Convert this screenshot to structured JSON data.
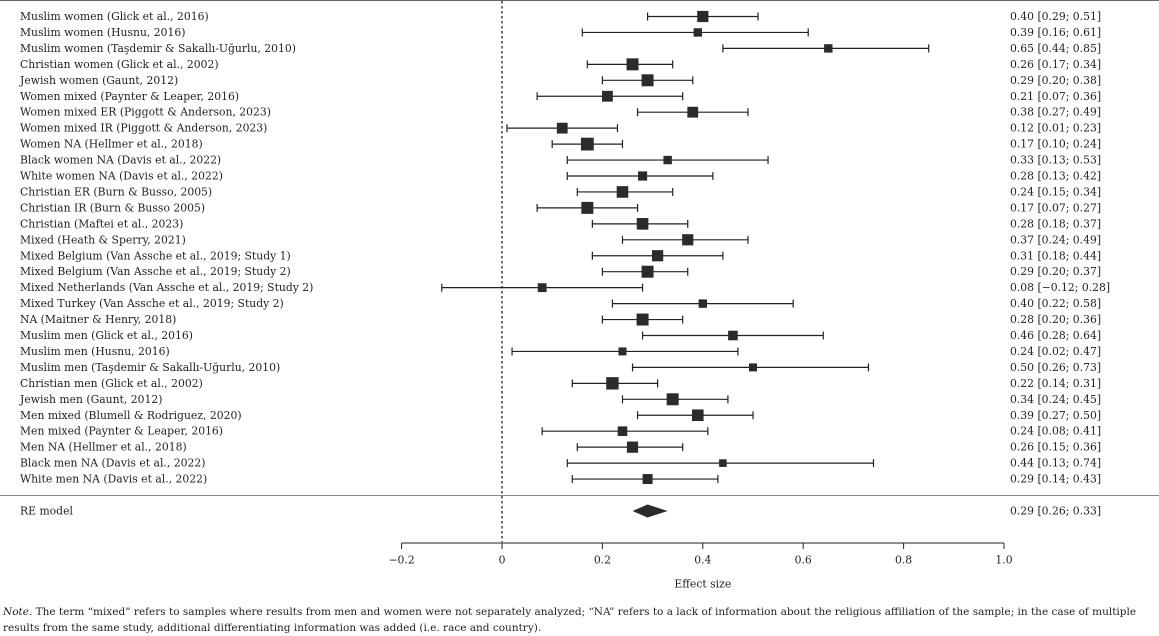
{
  "chart_data": {
    "type": "forest",
    "xlabel": "Effect size",
    "xlim": [
      -0.2,
      1.0
    ],
    "x_ticks": [
      -0.2,
      0,
      0.2,
      0.4,
      0.6,
      0.8,
      1.0
    ],
    "x_tick_labels": [
      "−0.2",
      "0",
      "0.2",
      "0.4",
      "0.6",
      "0.8",
      "1.0"
    ],
    "reference_line": 0,
    "studies": [
      {
        "label": "Muslim women (Glick et al., 2016)",
        "est": 0.4,
        "lo": 0.29,
        "hi": 0.51,
        "ci_text": "0.40 [0.29; 0.51]",
        "weight": 0.9
      },
      {
        "label": "Muslim women (Husnu, 2016)",
        "est": 0.39,
        "lo": 0.16,
        "hi": 0.61,
        "ci_text": "0.39 [0.16; 0.61]",
        "weight": 0.55
      },
      {
        "label": "Muslim women (Taşdemir & Sakallı-Uğurlu, 2010)",
        "est": 0.65,
        "lo": 0.44,
        "hi": 0.85,
        "ci_text": "0.65 [0.44; 0.85]",
        "weight": 0.55
      },
      {
        "label": "Christian women (Glick et al., 2002)",
        "est": 0.26,
        "lo": 0.17,
        "hi": 0.34,
        "ci_text": "0.26 [0.17; 0.34]",
        "weight": 1.0
      },
      {
        "label": "Jewish women (Gaunt, 2012)",
        "est": 0.29,
        "lo": 0.2,
        "hi": 0.38,
        "ci_text": "0.29 [0.20; 0.38]",
        "weight": 1.0
      },
      {
        "label": "Women mixed (Paynter & Leaper, 2016)",
        "est": 0.21,
        "lo": 0.07,
        "hi": 0.36,
        "ci_text": "0.21 [0.07; 0.36]",
        "weight": 0.85
      },
      {
        "label": "Women mixed ER (Piggott & Anderson, 2023)",
        "est": 0.38,
        "lo": 0.27,
        "hi": 0.49,
        "ci_text": "0.38 [0.27; 0.49]",
        "weight": 0.85
      },
      {
        "label": "Women mixed IR (Piggott & Anderson, 2023)",
        "est": 0.12,
        "lo": 0.01,
        "hi": 0.23,
        "ci_text": "0.12 [0.01; 0.23]",
        "weight": 0.85
      },
      {
        "label": "Women NA (Hellmer et al., 2018)",
        "est": 0.17,
        "lo": 0.1,
        "hi": 0.24,
        "ci_text": "0.17 [0.10; 0.24]",
        "weight": 1.1
      },
      {
        "label": "Black women NA (Davis et al., 2022)",
        "est": 0.33,
        "lo": 0.13,
        "hi": 0.53,
        "ci_text": "0.33 [0.13; 0.53]",
        "weight": 0.55
      },
      {
        "label": "White women NA (Davis et al., 2022)",
        "est": 0.28,
        "lo": 0.13,
        "hi": 0.42,
        "ci_text": "0.28 [0.13; 0.42]",
        "weight": 0.65
      },
      {
        "label": "Christian ER (Burn & Busso, 2005)",
        "est": 0.24,
        "lo": 0.15,
        "hi": 0.34,
        "ci_text": "0.24 [0.15; 0.34]",
        "weight": 0.95
      },
      {
        "label": "Christian IR (Burn & Busso 2005)",
        "est": 0.17,
        "lo": 0.07,
        "hi": 0.27,
        "ci_text": "0.17 [0.07; 0.27]",
        "weight": 1.0
      },
      {
        "label": "Christian (Maftei et al., 2023)",
        "est": 0.28,
        "lo": 0.18,
        "hi": 0.37,
        "ci_text": "0.28 [0.18; 0.37]",
        "weight": 0.95
      },
      {
        "label": "Mixed (Heath & Sperry, 2021)",
        "est": 0.37,
        "lo": 0.24,
        "hi": 0.49,
        "ci_text": "0.37 [0.24; 0.49]",
        "weight": 0.9
      },
      {
        "label": "Mixed Belgium (Van Assche et al., 2019; Study 1)",
        "est": 0.31,
        "lo": 0.18,
        "hi": 0.44,
        "ci_text": "0.31 [0.18; 0.44]",
        "weight": 0.9
      },
      {
        "label": "Mixed Belgium (Van Assche et al., 2019; Study 2)",
        "est": 0.29,
        "lo": 0.2,
        "hi": 0.37,
        "ci_text": "0.29 [0.20; 0.37]",
        "weight": 1.0
      },
      {
        "label": "Mixed Netherlands (Van Assche et al., 2019; Study 2)",
        "est": 0.08,
        "lo": -0.12,
        "hi": 0.28,
        "ci_text": "0.08 [−0.12; 0.28]",
        "weight": 0.6
      },
      {
        "label": "Mixed Turkey (Van Assche et al., 2019; Study 2)",
        "est": 0.4,
        "lo": 0.22,
        "hi": 0.58,
        "ci_text": "0.40 [0.22; 0.58]",
        "weight": 0.55
      },
      {
        "label": "NA (Maitner & Henry, 2018)",
        "est": 0.28,
        "lo": 0.2,
        "hi": 0.36,
        "ci_text": "0.28 [0.20; 0.36]",
        "weight": 1.0
      },
      {
        "label": "Muslim men (Glick et al., 2016)",
        "est": 0.46,
        "lo": 0.28,
        "hi": 0.64,
        "ci_text": "0.46 [0.28; 0.64]",
        "weight": 0.7
      },
      {
        "label": "Muslim men (Husnu, 2016)",
        "est": 0.24,
        "lo": 0.02,
        "hi": 0.47,
        "ci_text": "0.24 [0.02; 0.47]",
        "weight": 0.5
      },
      {
        "label": "Muslim men (Taşdemir & Sakallı-Uğurlu, 2010)",
        "est": 0.5,
        "lo": 0.26,
        "hi": 0.73,
        "ci_text": "0.50 [0.26; 0.73]",
        "weight": 0.5
      },
      {
        "label": "Christian men (Glick et al., 2002)",
        "est": 0.22,
        "lo": 0.14,
        "hi": 0.31,
        "ci_text": "0.22 [0.14; 0.31]",
        "weight": 1.05
      },
      {
        "label": "Jewish men (Gaunt, 2012)",
        "est": 0.34,
        "lo": 0.24,
        "hi": 0.45,
        "ci_text": "0.34 [0.24; 0.45]",
        "weight": 1.0
      },
      {
        "label": "Men mixed (Blumell & Rodriguez, 2020)",
        "est": 0.39,
        "lo": 0.27,
        "hi": 0.5,
        "ci_text": "0.39 [0.27; 0.50]",
        "weight": 0.95
      },
      {
        "label": "Men mixed (Paynter & Leaper, 2016)",
        "est": 0.24,
        "lo": 0.08,
        "hi": 0.41,
        "ci_text": "0.24 [0.08; 0.41]",
        "weight": 0.7
      },
      {
        "label": "Men NA (Hellmer et al., 2018)",
        "est": 0.26,
        "lo": 0.15,
        "hi": 0.36,
        "ci_text": "0.26 [0.15; 0.36]",
        "weight": 0.9
      },
      {
        "label": "Black men NA (Davis et al., 2022)",
        "est": 0.44,
        "lo": 0.13,
        "hi": 0.74,
        "ci_text": "0.44 [0.13; 0.74]",
        "weight": 0.45
      },
      {
        "label": "White men NA (Davis et al., 2022)",
        "est": 0.29,
        "lo": 0.14,
        "hi": 0.43,
        "ci_text": "0.29 [0.14; 0.43]",
        "weight": 0.75
      }
    ],
    "summary": {
      "label": "RE model",
      "est": 0.29,
      "lo": 0.26,
      "hi": 0.33,
      "ci_text": "0.29 [0.26; 0.33]"
    }
  },
  "note": {
    "lead": "Note.",
    "text": " The term “mixed” refers to samples where results from men and women were not separately analyzed; “NA” refers to a lack of information about the religious affiliation of the sample; in the case of multiple results from the same study, additional differentiating information was added (i.e. race and country)."
  },
  "colors": {
    "ink": "#222222",
    "marker": "#2b2b2b"
  }
}
